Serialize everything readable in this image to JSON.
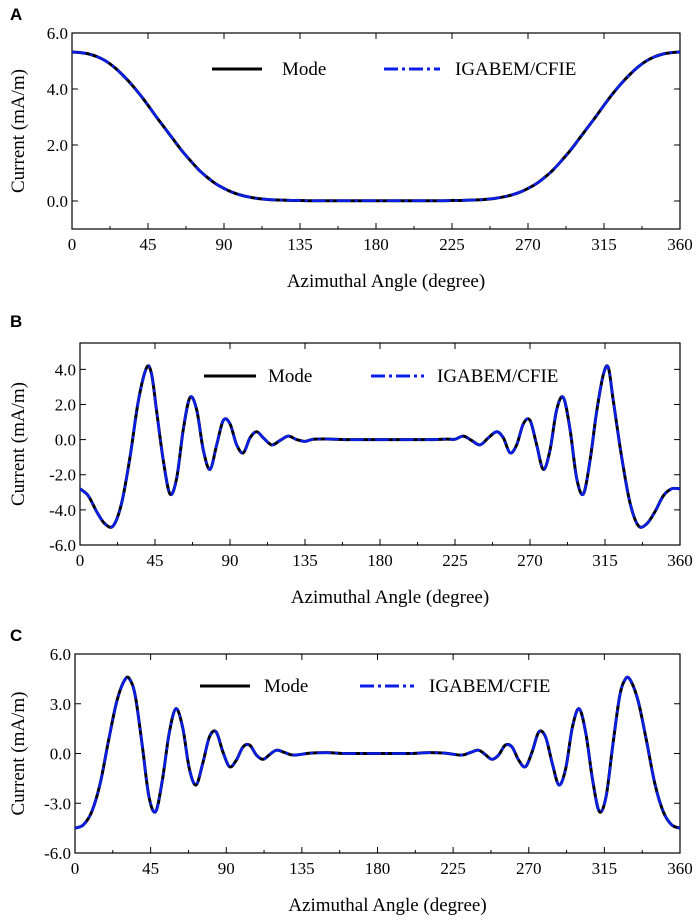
{
  "chart_data": [
    {
      "type": "line",
      "panel_label": "A",
      "xlabel": "Azimuthal Angle (degree)",
      "ylabel": "Current (mA/m)",
      "xlim": [
        0,
        360
      ],
      "ylim": [
        -1.0,
        6.0
      ],
      "xticks": [
        "0",
        "45",
        "90",
        "135",
        "180",
        "225",
        "270",
        "315",
        "360"
      ],
      "yticks": [
        "0.0",
        "2.0",
        "4.0",
        "6.0"
      ],
      "legend": "top-center",
      "grid": false,
      "x": [
        0,
        5,
        10,
        15,
        20,
        25,
        30,
        35,
        40,
        45,
        50,
        55,
        60,
        65,
        70,
        75,
        80,
        85,
        90,
        95,
        100,
        105,
        110,
        115,
        120,
        125,
        130,
        135,
        140,
        145,
        150,
        155,
        160,
        165,
        170,
        175,
        180,
        185,
        190,
        195,
        200,
        205,
        210,
        215,
        220,
        225,
        230,
        235,
        240,
        245,
        250,
        255,
        260,
        265,
        270,
        275,
        280,
        285,
        290,
        295,
        300,
        305,
        310,
        315,
        320,
        325,
        330,
        335,
        340,
        345,
        350,
        355,
        360
      ],
      "series": [
        {
          "name": "Mode",
          "color": "#000000",
          "style": "solid",
          "values": [
            5.32,
            5.3,
            5.25,
            5.15,
            5.0,
            4.78,
            4.5,
            4.18,
            3.82,
            3.42,
            3.0,
            2.6,
            2.2,
            1.8,
            1.45,
            1.12,
            0.85,
            0.62,
            0.45,
            0.31,
            0.21,
            0.14,
            0.09,
            0.06,
            0.04,
            0.03,
            0.02,
            0.02,
            0.01,
            0.01,
            0.01,
            0.01,
            0.01,
            0.01,
            0.01,
            0.01,
            0.01,
            0.01,
            0.01,
            0.01,
            0.01,
            0.01,
            0.01,
            0.01,
            0.01,
            0.02,
            0.02,
            0.03,
            0.04,
            0.06,
            0.09,
            0.14,
            0.21,
            0.31,
            0.45,
            0.62,
            0.85,
            1.12,
            1.45,
            1.8,
            2.2,
            2.6,
            3.0,
            3.42,
            3.82,
            4.18,
            4.5,
            4.78,
            5.0,
            5.15,
            5.25,
            5.3,
            5.32
          ]
        },
        {
          "name": "IGABEM/CFIE",
          "color": "#0a1ee8",
          "style": "dashdot",
          "values": [
            5.32,
            5.3,
            5.25,
            5.15,
            5.0,
            4.78,
            4.5,
            4.18,
            3.82,
            3.42,
            3.0,
            2.6,
            2.2,
            1.8,
            1.45,
            1.12,
            0.85,
            0.62,
            0.45,
            0.31,
            0.21,
            0.14,
            0.09,
            0.06,
            0.04,
            0.03,
            0.02,
            0.02,
            0.01,
            0.01,
            0.01,
            0.01,
            0.01,
            0.01,
            0.01,
            0.01,
            0.01,
            0.01,
            0.01,
            0.01,
            0.01,
            0.01,
            0.01,
            0.01,
            0.01,
            0.02,
            0.02,
            0.03,
            0.04,
            0.06,
            0.09,
            0.14,
            0.21,
            0.31,
            0.45,
            0.62,
            0.85,
            1.12,
            1.45,
            1.8,
            2.2,
            2.6,
            3.0,
            3.42,
            3.82,
            4.18,
            4.5,
            4.78,
            5.0,
            5.15,
            5.25,
            5.3,
            5.32
          ]
        }
      ]
    },
    {
      "type": "line",
      "panel_label": "B",
      "xlabel": "Azimuthal Angle (degree)",
      "ylabel": "Current (mA/m)",
      "xlim": [
        0,
        360
      ],
      "ylim": [
        -6.0,
        5.5
      ],
      "xticks": [
        "0",
        "45",
        "90",
        "135",
        "180",
        "225",
        "270",
        "315",
        "360"
      ],
      "yticks": [
        "-6.0",
        "-4.0",
        "-2.0",
        "0.0",
        "2.0",
        "4.0"
      ],
      "legend": "top-center",
      "grid": false,
      "x": [
        0,
        5,
        10,
        15,
        20,
        25,
        30,
        35,
        40,
        43,
        46,
        50,
        54,
        58,
        62,
        66,
        70,
        74,
        78,
        82,
        86,
        90,
        94,
        98,
        102,
        106,
        110,
        115,
        120,
        125,
        130,
        135,
        140,
        150,
        160,
        170,
        180,
        190,
        200,
        210,
        220,
        225,
        230,
        235,
        240,
        245,
        250,
        254,
        258,
        262,
        266,
        270,
        274,
        278,
        282,
        286,
        290,
        294,
        298,
        302,
        306,
        310,
        314,
        317,
        320,
        325,
        330,
        335,
        340,
        345,
        350,
        355,
        360
      ],
      "series": [
        {
          "name": "Mode",
          "color": "#000000",
          "style": "solid",
          "values": [
            -2.8,
            -3.2,
            -4.1,
            -4.8,
            -4.9,
            -3.6,
            -1.0,
            2.2,
            4.1,
            3.7,
            1.6,
            -1.2,
            -3.1,
            -2.2,
            0.6,
            2.4,
            1.7,
            -0.6,
            -1.7,
            -0.3,
            1.1,
            0.9,
            -0.3,
            -0.75,
            0.1,
            0.45,
            0.1,
            -0.3,
            -0.05,
            0.2,
            0.0,
            -0.1,
            0.02,
            0.03,
            0.0,
            0.0,
            0.0,
            0.0,
            0.0,
            0.0,
            0.03,
            0.02,
            0.2,
            -0.05,
            -0.3,
            0.1,
            0.45,
            0.1,
            -0.75,
            -0.3,
            0.9,
            1.1,
            -0.3,
            -1.7,
            -0.6,
            1.7,
            2.4,
            0.6,
            -2.2,
            -3.1,
            -1.2,
            1.6,
            3.7,
            4.1,
            2.2,
            -1.0,
            -3.6,
            -4.9,
            -4.8,
            -4.1,
            -3.2,
            -2.8,
            -2.8
          ]
        },
        {
          "name": "IGABEM/CFIE",
          "color": "#0a1ee8",
          "style": "dashdot",
          "values": [
            -2.8,
            -3.2,
            -4.1,
            -4.8,
            -4.9,
            -3.6,
            -1.0,
            2.2,
            4.1,
            3.7,
            1.6,
            -1.2,
            -3.1,
            -2.2,
            0.6,
            2.4,
            1.7,
            -0.6,
            -1.7,
            -0.3,
            1.1,
            0.9,
            -0.3,
            -0.75,
            0.1,
            0.45,
            0.1,
            -0.3,
            -0.05,
            0.2,
            0.0,
            -0.1,
            0.02,
            0.03,
            0.0,
            0.0,
            0.0,
            0.0,
            0.0,
            0.0,
            0.03,
            0.02,
            0.2,
            -0.05,
            -0.3,
            0.1,
            0.45,
            0.1,
            -0.75,
            -0.3,
            0.9,
            1.1,
            -0.3,
            -1.7,
            -0.6,
            1.7,
            2.4,
            0.6,
            -2.2,
            -3.1,
            -1.2,
            1.6,
            3.7,
            4.1,
            2.2,
            -1.0,
            -3.6,
            -4.9,
            -4.8,
            -4.1,
            -3.2,
            -2.8,
            -2.8
          ]
        }
      ]
    },
    {
      "type": "line",
      "panel_label": "C",
      "xlabel": "Azimuthal Angle (degree)",
      "ylabel": "Current (mA/m)",
      "xlim": [
        0,
        360
      ],
      "ylim": [
        -6.0,
        6.0
      ],
      "xticks": [
        "0",
        "45",
        "90",
        "135",
        "180",
        "225",
        "270",
        "315",
        "360"
      ],
      "yticks": [
        "-6.0",
        "-3.0",
        "0.0",
        "3.0",
        "6.0"
      ],
      "legend": "top-center",
      "grid": false,
      "x": [
        0,
        5,
        10,
        15,
        20,
        25,
        30,
        33,
        36,
        40,
        44,
        48,
        52,
        56,
        60,
        64,
        68,
        72,
        76,
        80,
        84,
        88,
        92,
        96,
        100,
        104,
        108,
        112,
        116,
        120,
        125,
        130,
        140,
        150,
        160,
        170,
        180,
        190,
        200,
        210,
        220,
        230,
        235,
        240,
        244,
        248,
        252,
        256,
        260,
        264,
        268,
        272,
        276,
        280,
        284,
        288,
        292,
        296,
        300,
        304,
        308,
        312,
        316,
        320,
        324,
        327,
        330,
        335,
        340,
        345,
        350,
        355,
        360
      ],
      "series": [
        {
          "name": "Mode",
          "color": "#000000",
          "style": "solid",
          "values": [
            -4.5,
            -4.3,
            -3.5,
            -1.8,
            0.8,
            3.2,
            4.5,
            4.4,
            3.4,
            0.5,
            -2.6,
            -3.5,
            -1.6,
            1.2,
            2.7,
            1.6,
            -0.9,
            -1.9,
            -0.6,
            1.0,
            1.3,
            0.1,
            -0.8,
            -0.4,
            0.4,
            0.5,
            -0.1,
            -0.35,
            -0.05,
            0.2,
            0.05,
            -0.1,
            0.02,
            0.05,
            0.0,
            0.0,
            0.0,
            0.0,
            0.0,
            0.05,
            0.02,
            -0.1,
            0.05,
            0.2,
            -0.05,
            -0.35,
            -0.1,
            0.5,
            0.4,
            -0.4,
            -0.8,
            0.1,
            1.3,
            1.0,
            -0.6,
            -1.9,
            -0.9,
            1.6,
            2.7,
            1.2,
            -1.6,
            -3.5,
            -2.6,
            0.5,
            3.4,
            4.4,
            4.5,
            3.2,
            0.8,
            -1.8,
            -3.5,
            -4.3,
            -4.5
          ]
        },
        {
          "name": "IGABEM/CFIE",
          "color": "#0a1ee8",
          "style": "dashdot",
          "values": [
            -4.5,
            -4.3,
            -3.5,
            -1.8,
            0.8,
            3.2,
            4.5,
            4.4,
            3.4,
            0.5,
            -2.6,
            -3.5,
            -1.6,
            1.2,
            2.7,
            1.6,
            -0.9,
            -1.9,
            -0.6,
            1.0,
            1.3,
            0.1,
            -0.8,
            -0.4,
            0.4,
            0.5,
            -0.1,
            -0.35,
            -0.05,
            0.2,
            0.05,
            -0.1,
            0.02,
            0.05,
            0.0,
            0.0,
            0.0,
            0.0,
            0.0,
            0.05,
            0.02,
            -0.1,
            0.05,
            0.2,
            -0.05,
            -0.35,
            -0.1,
            0.5,
            0.4,
            -0.4,
            -0.8,
            0.1,
            1.3,
            1.0,
            -0.6,
            -1.9,
            -0.9,
            1.6,
            2.7,
            1.2,
            -1.6,
            -3.5,
            -2.6,
            0.5,
            3.4,
            4.4,
            4.5,
            3.2,
            0.8,
            -1.8,
            -3.5,
            -4.3,
            -4.5
          ]
        }
      ]
    }
  ]
}
